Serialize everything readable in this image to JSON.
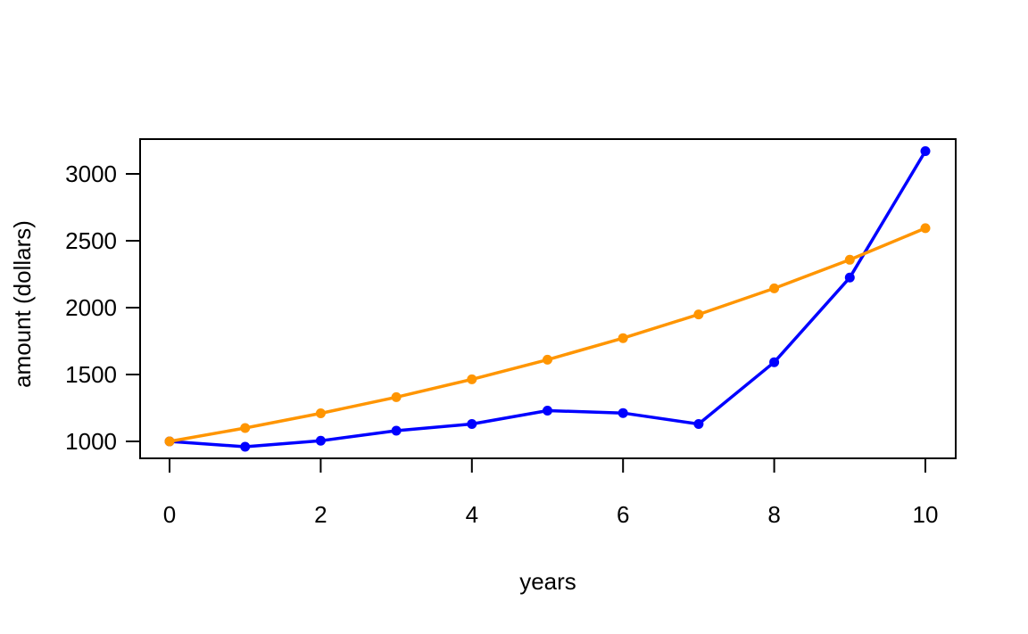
{
  "chart_data": {
    "type": "line",
    "title": "",
    "xlabel": "years",
    "ylabel": "amount (dollars)",
    "xlim": [
      0,
      10
    ],
    "ylim": [
      1000,
      3000
    ],
    "x_ticks": [
      0,
      2,
      4,
      6,
      8,
      10
    ],
    "y_ticks": [
      1000,
      1500,
      2000,
      2500,
      3000
    ],
    "x_tick_labels": [
      "0",
      "2",
      "4",
      "6",
      "8",
      "10"
    ],
    "y_tick_labels": [
      "1000",
      "1500",
      "2000",
      "2500",
      "3000"
    ],
    "grid": false,
    "legend": "none",
    "x": [
      0,
      1,
      2,
      3,
      4,
      5,
      6,
      7,
      8,
      9,
      10
    ],
    "series": [
      {
        "color": "#0000ff",
        "values": [
          1000,
          960,
          1005,
          1080,
          1130,
          1230,
          1212,
          1130,
          1592,
          2225,
          3170
        ]
      },
      {
        "color": "#ff9500",
        "values": [
          1000,
          1100,
          1210,
          1331,
          1464,
          1611,
          1772,
          1949,
          2144,
          2358,
          2594
        ]
      }
    ]
  }
}
